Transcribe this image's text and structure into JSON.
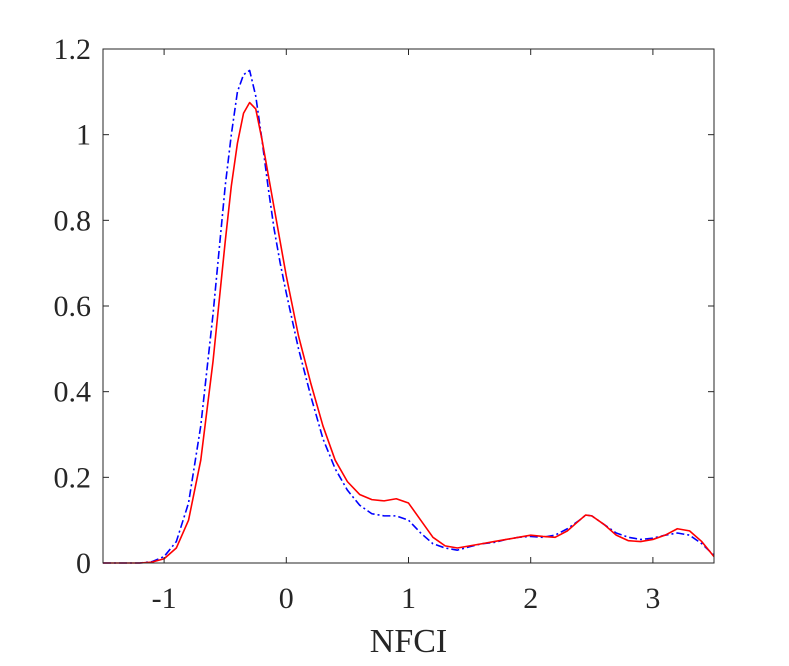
{
  "chart_data": {
    "type": "line",
    "title": "",
    "xlabel": "NFCI",
    "ylabel": "",
    "xlim": [
      -1.5,
      3.5
    ],
    "ylim": [
      0,
      1.2
    ],
    "xticks": [
      -1,
      0,
      1,
      2,
      3
    ],
    "xtick_labels": [
      "-1",
      "0",
      "1",
      "2",
      "3"
    ],
    "yticks": [
      0,
      0.2,
      0.4,
      0.6,
      0.8,
      1,
      1.2
    ],
    "ytick_labels": [
      "0",
      "0.2",
      "0.4",
      "0.6",
      "0.8",
      "1",
      "1.2"
    ],
    "grid": false,
    "box": true,
    "series": [
      {
        "color": "#0000ff",
        "line_style": "dash-dot",
        "x": [
          -1.5,
          -1.2,
          -1.1,
          -1.0,
          -0.9,
          -0.8,
          -0.7,
          -0.6,
          -0.5,
          -0.45,
          -0.4,
          -0.35,
          -0.3,
          -0.25,
          -0.2,
          -0.15,
          -0.1,
          -0.05,
          0.0,
          0.1,
          0.2,
          0.3,
          0.4,
          0.5,
          0.6,
          0.7,
          0.8,
          0.9,
          1.0,
          1.1,
          1.2,
          1.3,
          1.4,
          1.5,
          1.6,
          1.7,
          1.8,
          1.9,
          2.0,
          2.1,
          2.2,
          2.3,
          2.4,
          2.45,
          2.5,
          2.6,
          2.7,
          2.8,
          2.9,
          3.0,
          3.1,
          3.2,
          3.3,
          3.4,
          3.5
        ],
        "y": [
          0.0,
          0.0,
          0.003,
          0.015,
          0.05,
          0.14,
          0.32,
          0.58,
          0.88,
          1.0,
          1.1,
          1.14,
          1.15,
          1.09,
          0.99,
          0.88,
          0.78,
          0.7,
          0.63,
          0.5,
          0.39,
          0.29,
          0.22,
          0.17,
          0.135,
          0.115,
          0.11,
          0.11,
          0.1,
          0.07,
          0.045,
          0.035,
          0.03,
          0.038,
          0.045,
          0.048,
          0.055,
          0.06,
          0.062,
          0.06,
          0.065,
          0.08,
          0.1,
          0.112,
          0.11,
          0.09,
          0.07,
          0.06,
          0.055,
          0.058,
          0.065,
          0.07,
          0.065,
          0.045,
          0.018
        ]
      },
      {
        "color": "#ff0000",
        "line_style": "solid",
        "x": [
          -1.5,
          -1.2,
          -1.1,
          -1.0,
          -0.9,
          -0.8,
          -0.7,
          -0.6,
          -0.5,
          -0.45,
          -0.4,
          -0.35,
          -0.3,
          -0.25,
          -0.2,
          -0.15,
          -0.1,
          -0.05,
          0.0,
          0.1,
          0.2,
          0.3,
          0.4,
          0.5,
          0.6,
          0.7,
          0.8,
          0.9,
          1.0,
          1.1,
          1.2,
          1.3,
          1.4,
          1.5,
          1.6,
          1.7,
          1.8,
          1.9,
          2.0,
          2.1,
          2.2,
          2.3,
          2.4,
          2.45,
          2.5,
          2.6,
          2.7,
          2.8,
          2.9,
          3.0,
          3.1,
          3.2,
          3.3,
          3.4,
          3.5
        ],
        "y": [
          0.0,
          0.0,
          0.002,
          0.01,
          0.035,
          0.1,
          0.24,
          0.47,
          0.75,
          0.88,
          0.98,
          1.05,
          1.075,
          1.06,
          0.99,
          0.91,
          0.83,
          0.75,
          0.67,
          0.53,
          0.42,
          0.32,
          0.24,
          0.19,
          0.16,
          0.148,
          0.145,
          0.15,
          0.14,
          0.1,
          0.06,
          0.04,
          0.035,
          0.04,
          0.045,
          0.05,
          0.055,
          0.06,
          0.065,
          0.062,
          0.06,
          0.075,
          0.1,
          0.112,
          0.11,
          0.09,
          0.065,
          0.052,
          0.05,
          0.055,
          0.065,
          0.08,
          0.075,
          0.05,
          0.015
        ]
      }
    ]
  }
}
